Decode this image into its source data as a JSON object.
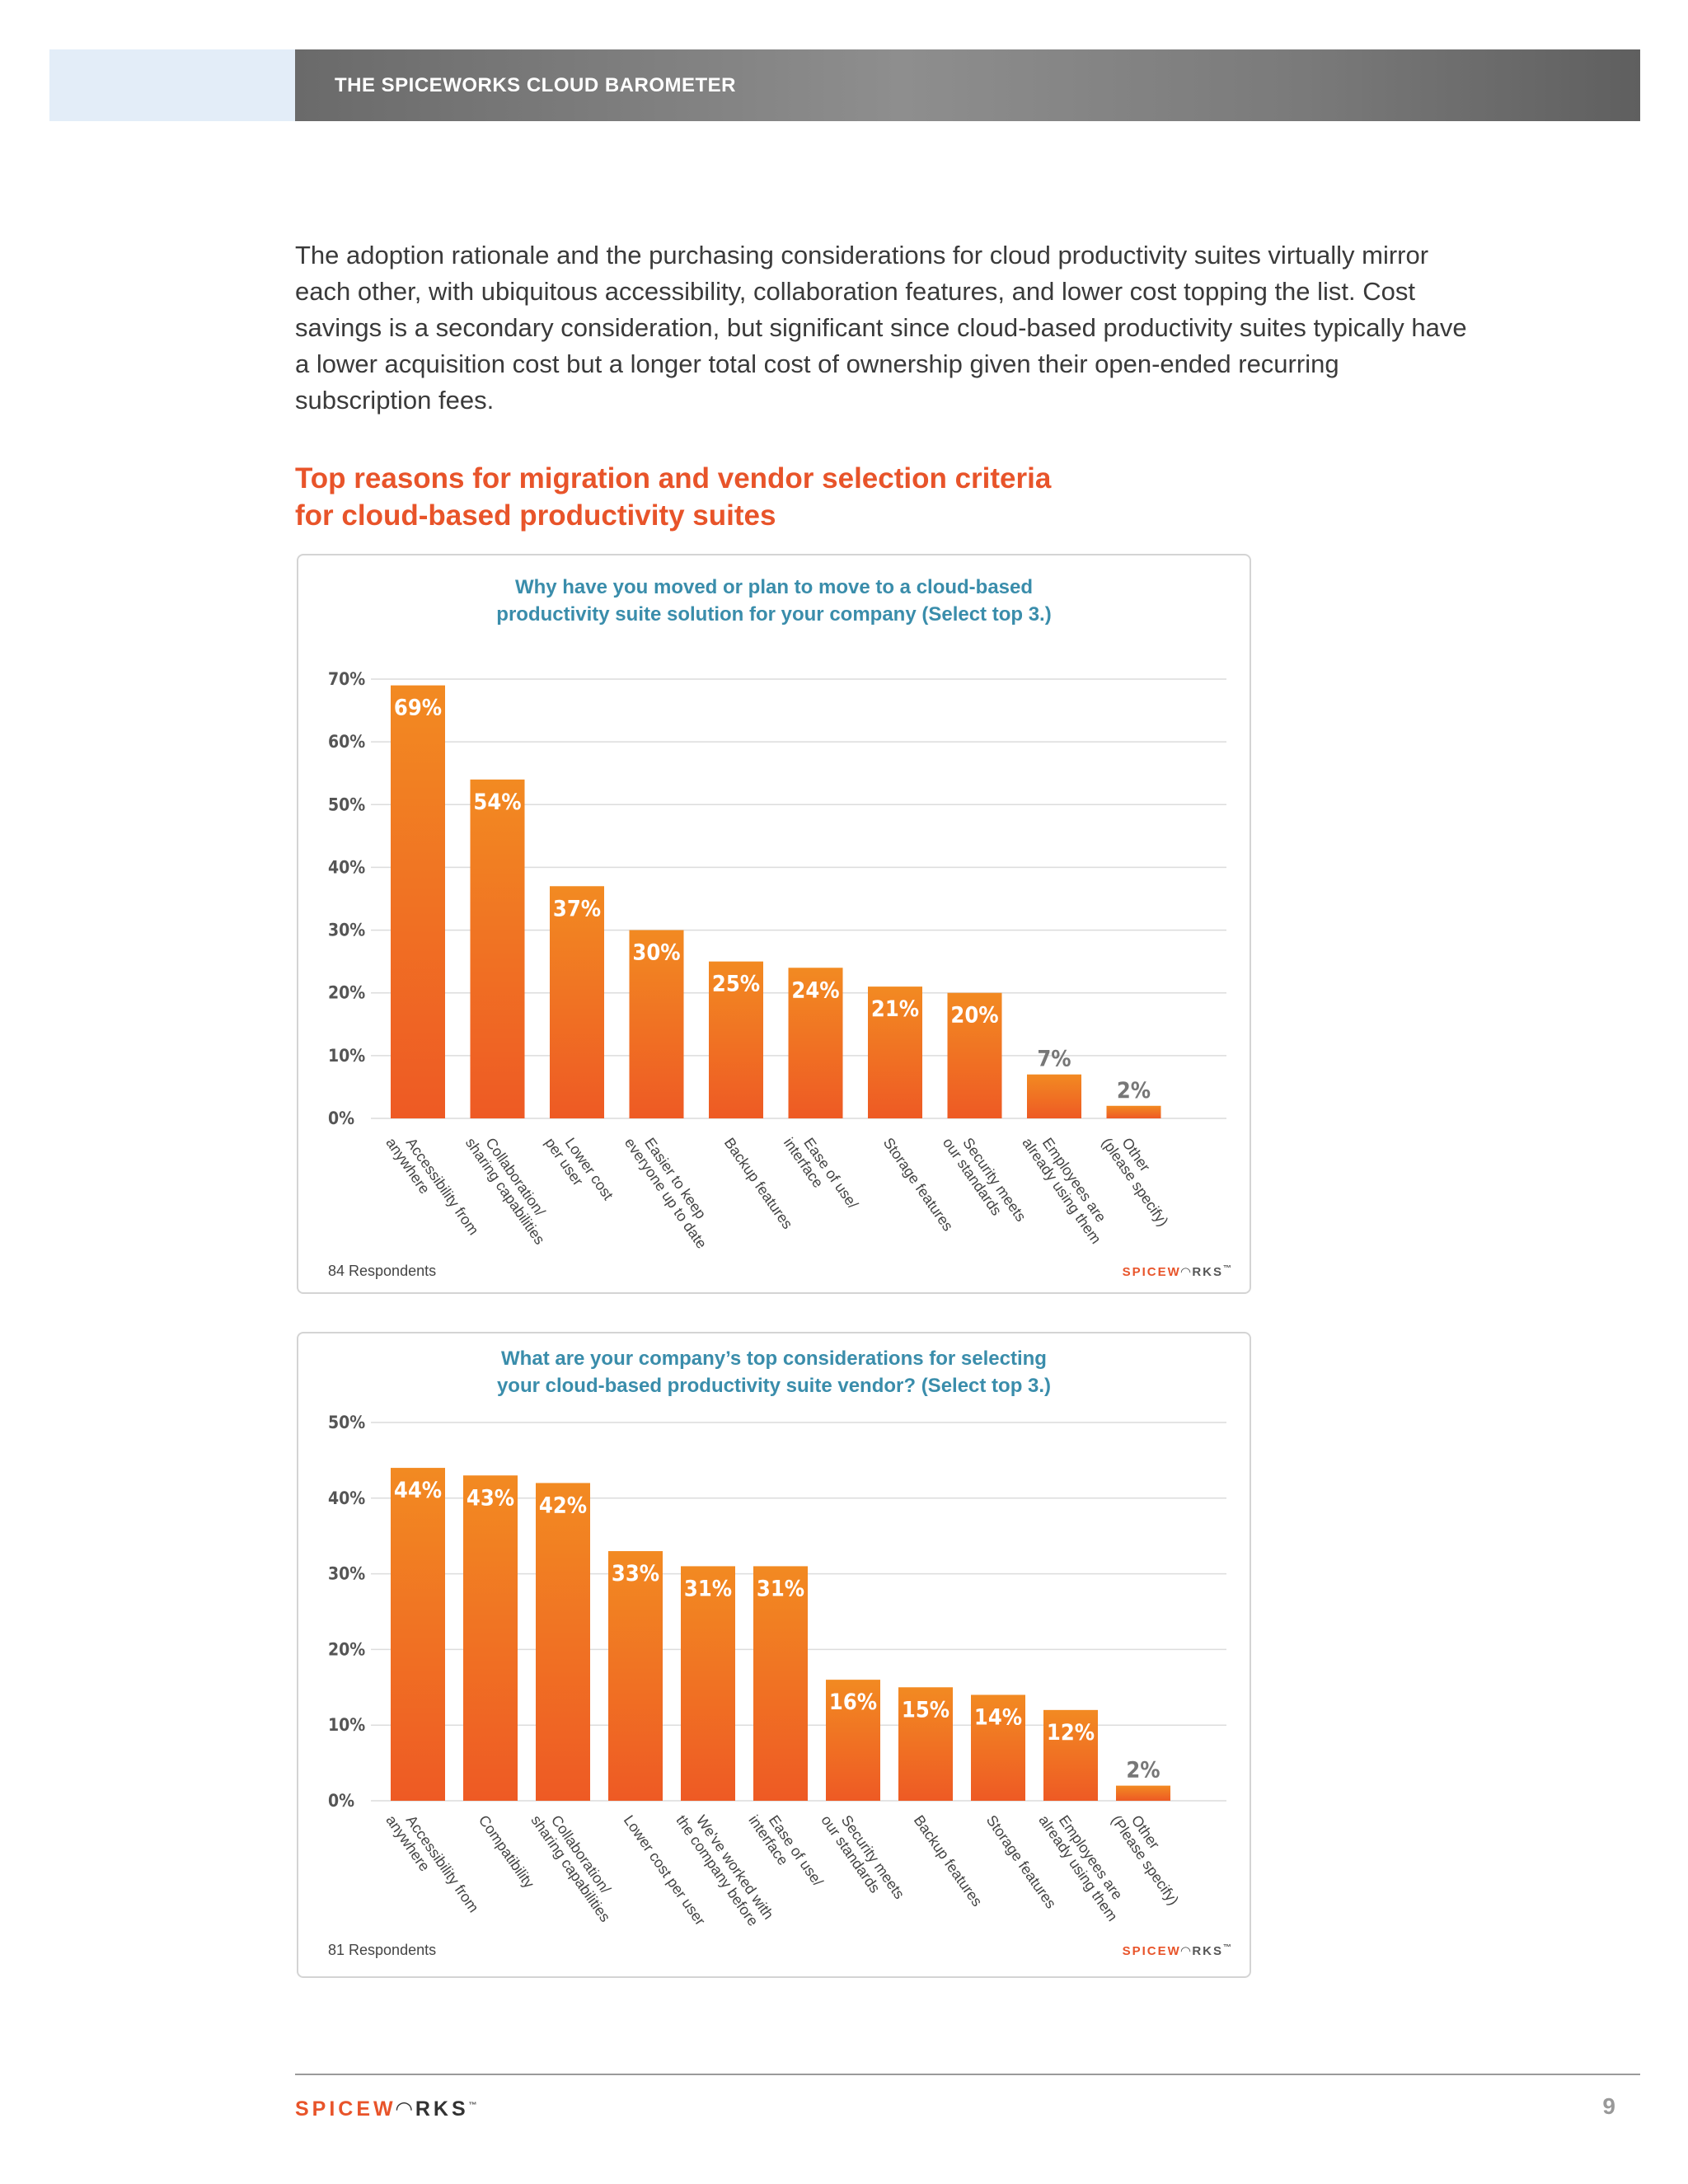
{
  "header": {
    "title": "THE SPICEWORKS CLOUD BAROMETER"
  },
  "intro": "The adoption rationale and the purchasing considerations for cloud productivity suites virtually mirror each other, with ubiquitous accessibility, collaboration features, and lower cost topping the list. Cost savings is a secondary consideration, but significant since cloud-based productivity suites typically have a lower acquisition cost but a longer total cost of ownership given their open-ended recurring subscription fees.",
  "section_title": {
    "line1": "Top reasons for migration and vendor selection criteria",
    "line2": "for cloud-based productivity suites"
  },
  "brand": {
    "logo_orange": "SPICEW",
    "logo_mark": "◠",
    "logo_dark": "RKS",
    "tm": "™",
    "accent": "#e8542a",
    "bar_top": "#f28a22",
    "bar_bottom": "#ee5a24",
    "question_color": "#3a8dab"
  },
  "chart_data": [
    {
      "type": "bar",
      "title_line1": "Why have you moved or plan to move to a cloud-based",
      "title_line2": "productivity suite solution for your company (Select top 3.)",
      "categories": [
        [
          "Accessibility from",
          "anywhere"
        ],
        [
          "Collaboration/",
          "sharing capabilities"
        ],
        [
          "Lower cost",
          "per user"
        ],
        [
          "Easier to keep",
          "everyone up to date"
        ],
        [
          "Backup features"
        ],
        [
          "Ease of use/",
          "interface"
        ],
        [
          "Storage features"
        ],
        [
          "Security meets",
          "our standards"
        ],
        [
          "Employees are",
          "already using them"
        ],
        [
          "Other",
          "(please specify)"
        ]
      ],
      "values": [
        69,
        54,
        37,
        30,
        25,
        24,
        21,
        20,
        7,
        2
      ],
      "value_labels": [
        "69%",
        "54%",
        "37%",
        "30%",
        "25%",
        "24%",
        "21%",
        "20%",
        "7%",
        "2%"
      ],
      "y_ticks": [
        "0%",
        "10%",
        "20%",
        "30%",
        "40%",
        "50%",
        "60%",
        "70%"
      ],
      "ylim": [
        0,
        70
      ],
      "grid": true,
      "footnote": "84 Respondents"
    },
    {
      "type": "bar",
      "title_line1": "What are your company’s top considerations for selecting",
      "title_line2": "your cloud-based productivity suite vendor? (Select top 3.)",
      "categories": [
        [
          "Accessibility from",
          "anywhere"
        ],
        [
          "Compatibility"
        ],
        [
          "Collaboration/",
          "sharing capabilities"
        ],
        [
          "Lower cost per user"
        ],
        [
          "We've worked with",
          "the company before"
        ],
        [
          "Ease of use/",
          "interface"
        ],
        [
          "Security meets",
          "our standards"
        ],
        [
          "Backup features"
        ],
        [
          "Storage features"
        ],
        [
          "Employees are",
          "already using them"
        ],
        [
          "Other",
          "(Please specify)"
        ]
      ],
      "values": [
        44,
        43,
        42,
        33,
        31,
        31,
        16,
        15,
        14,
        12,
        2
      ],
      "value_labels": [
        "44%",
        "43%",
        "42%",
        "33%",
        "31%",
        "31%",
        "16%",
        "15%",
        "14%",
        "12%",
        "2%"
      ],
      "y_ticks": [
        "0%",
        "10%",
        "20%",
        "30%",
        "40%",
        "50%"
      ],
      "ylim": [
        0,
        50
      ],
      "grid": true,
      "footnote": "81 Respondents"
    }
  ],
  "footer": {
    "page_number": "9"
  }
}
